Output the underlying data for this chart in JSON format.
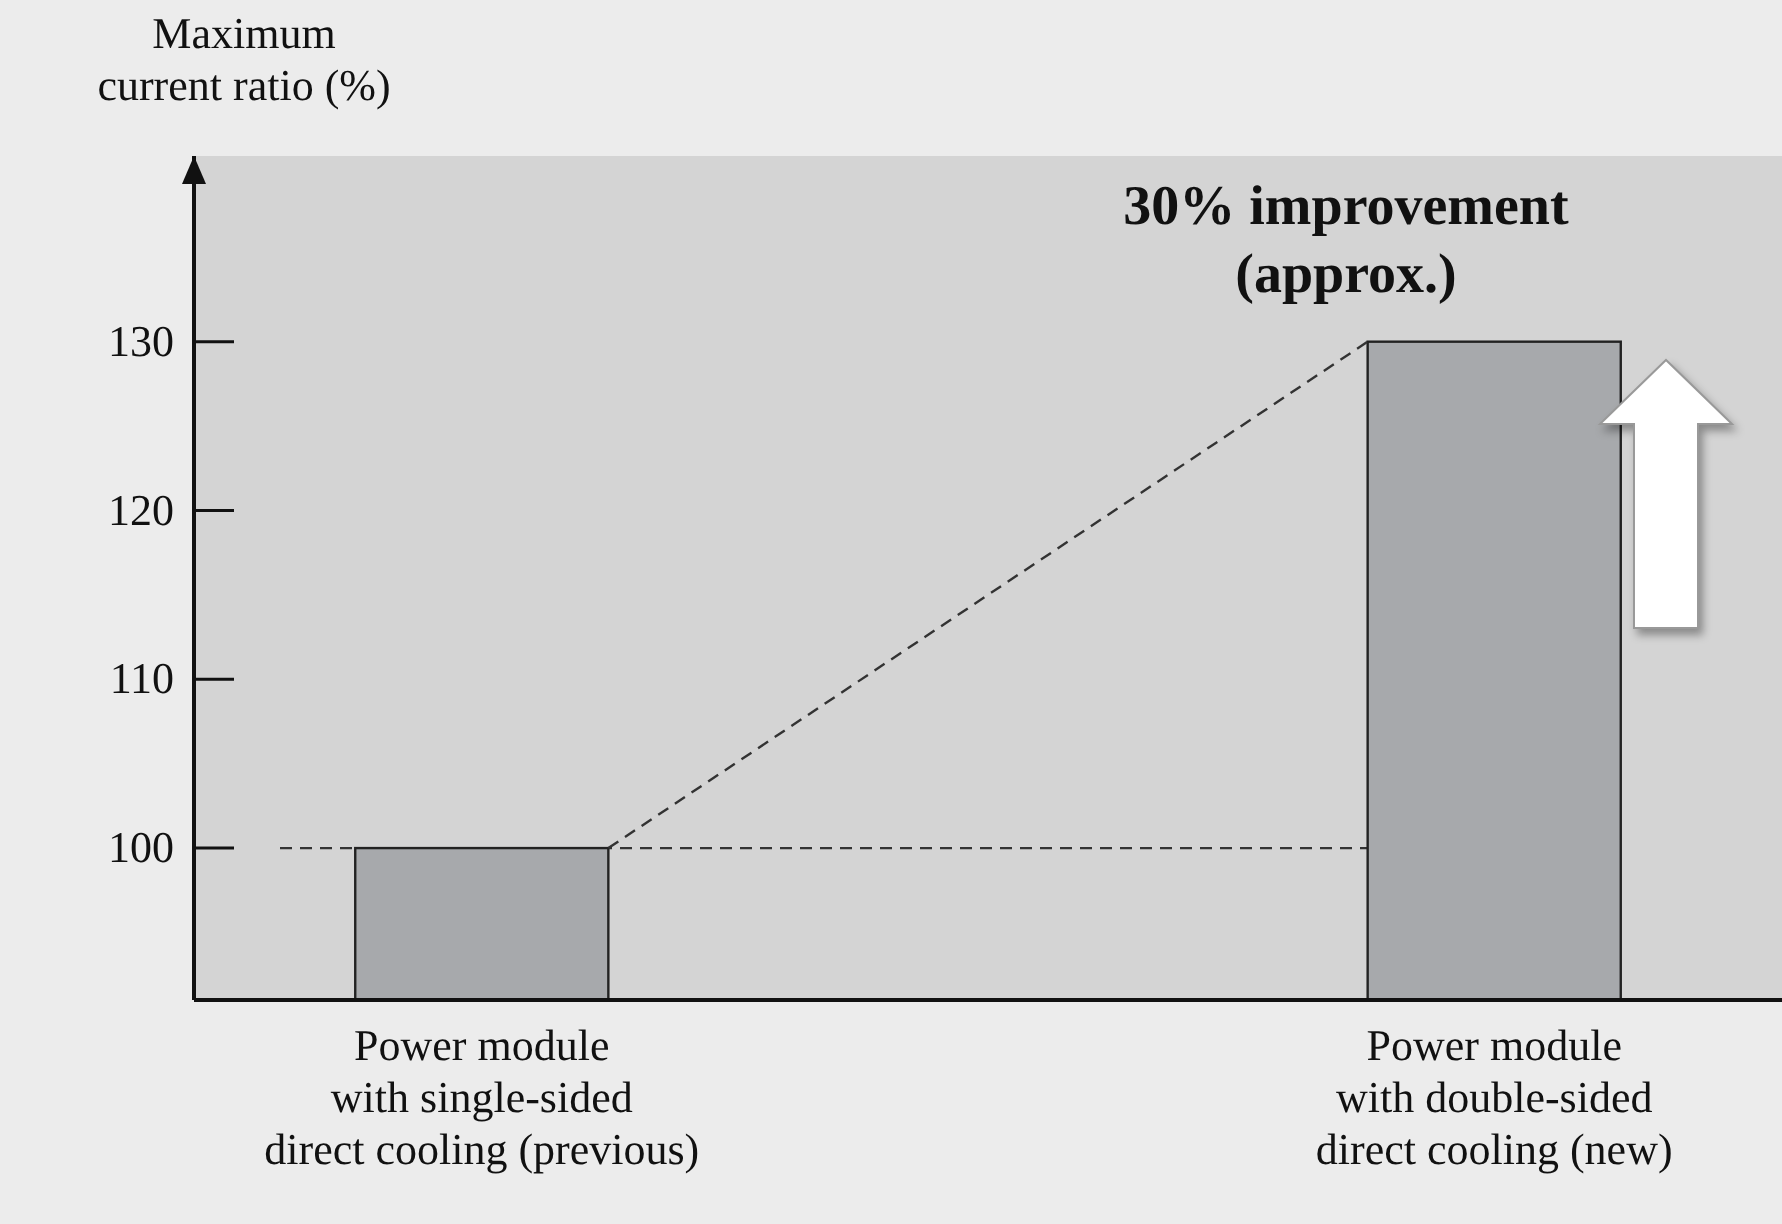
{
  "chart_data": {
    "type": "bar",
    "ylabel": "Maximum\ncurrent ratio (%)",
    "categories": [
      "Power module\nwith single-sided\ndirect cooling (previous)",
      "Power module\nwith double-sided\ndirect cooling (new)"
    ],
    "values": [
      100,
      130
    ],
    "color": "#a7a9ac",
    "ylim": [
      91,
      141
    ],
    "yticks": [
      100,
      110,
      120,
      130
    ],
    "grid": false,
    "ref_lines": [
      {
        "axis": "y",
        "value": 100,
        "line_style": "dashed",
        "color": "#333333"
      }
    ],
    "annotations": [
      "30% improvement\n(approx.)"
    ]
  }
}
